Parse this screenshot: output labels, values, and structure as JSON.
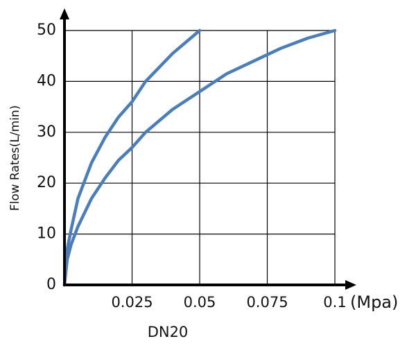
{
  "chart_data": {
    "type": "line",
    "title": "DN20",
    "xlabel": "(Mpa)",
    "ylabel": "Flow Rates(L/min)",
    "x": [
      0,
      0.001,
      0.0025,
      0.005,
      0.01,
      0.015,
      0.02,
      0.025,
      0.03,
      0.04,
      0.05,
      0.06,
      0.07,
      0.08,
      0.09,
      0.1
    ],
    "series": [
      {
        "color": "#4a7ebb",
        "values": [
          0,
          7,
          11,
          17,
          24,
          29,
          33,
          36,
          40,
          45.5,
          50,
          null,
          null,
          null,
          null,
          null
        ]
      },
      {
        "color": "#4a7ebb",
        "values": [
          0,
          5,
          8,
          11.5,
          17,
          21,
          24.5,
          27,
          30,
          34.5,
          38,
          41.5,
          44,
          46.5,
          48.5,
          50
        ]
      }
    ],
    "xlim": [
      0,
      0.1
    ],
    "xticks": [
      0.025,
      0.05,
      0.075,
      0.1
    ],
    "ylim": [
      0,
      50
    ],
    "yticks": [
      0,
      10,
      20,
      30,
      40,
      50
    ],
    "grid": true
  }
}
